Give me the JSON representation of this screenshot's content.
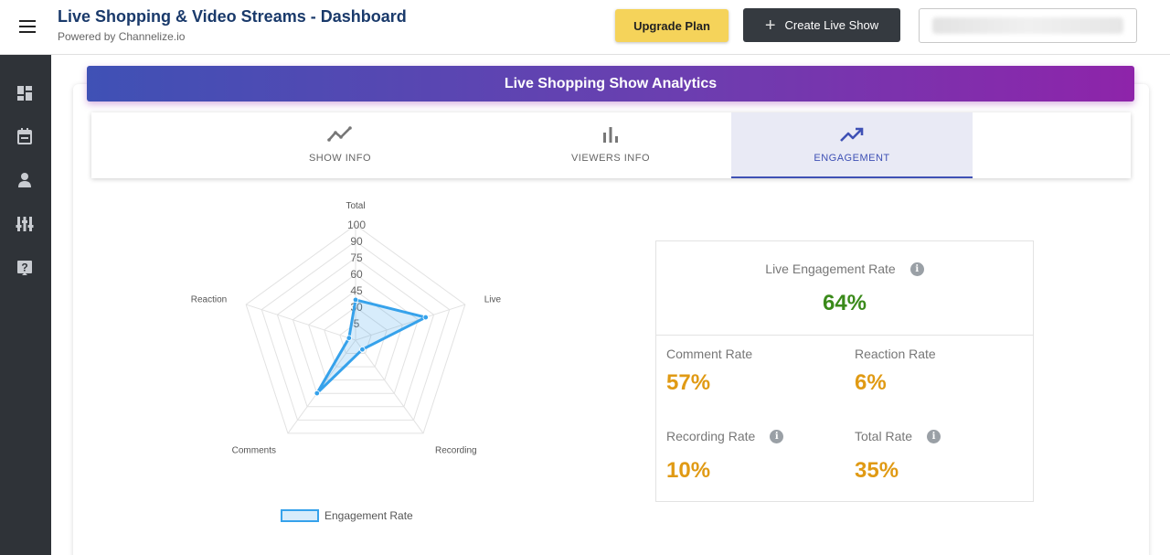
{
  "header": {
    "title": "Live Shopping & Video Streams - Dashboard",
    "subtitle": "Powered by Channelize.io",
    "upgrade_label": "Upgrade Plan",
    "create_label": "Create Live Show"
  },
  "sidebar": {
    "items": [
      {
        "icon": "dashboard-icon"
      },
      {
        "icon": "calendar-icon"
      },
      {
        "icon": "user-icon"
      },
      {
        "icon": "sliders-icon"
      },
      {
        "icon": "help-icon"
      }
    ]
  },
  "banner": {
    "title": "Live Shopping Show Analytics"
  },
  "tabs": [
    {
      "label": "SHOW INFO",
      "icon": "line-chart-icon"
    },
    {
      "label": "VIEWERS INFO",
      "icon": "bar-chart-icon"
    },
    {
      "label": "ENGAGEMENT",
      "icon": "trending-up-icon",
      "active": true
    }
  ],
  "chart_data": {
    "type": "radar",
    "axes": [
      "Total",
      "Live",
      "Recording",
      "Comments",
      "Reaction"
    ],
    "series": [
      {
        "name": "Engagement Rate",
        "values": [
          35,
          64,
          10,
          57,
          6
        ]
      }
    ],
    "tick_labels": [
      "5",
      "30",
      "45",
      "60",
      "75",
      "90",
      "100"
    ],
    "range": [
      0,
      100
    ],
    "legend": "bottom",
    "color": "#36a2eb"
  },
  "stats": {
    "live": {
      "label": "Live Engagement Rate",
      "value": "64%"
    },
    "comment": {
      "label": "Comment Rate",
      "value": "57%"
    },
    "reaction": {
      "label": "Reaction Rate",
      "value": "6%"
    },
    "recording": {
      "label": "Recording Rate",
      "value": "10%"
    },
    "total": {
      "label": "Total Rate",
      "value": "35%"
    }
  },
  "colors": {
    "accent": "#3f51b5",
    "banner_end": "#8e24aa",
    "upgrade": "#f5d35a",
    "positive": "#3a8a1a",
    "warning": "#e09a14"
  }
}
